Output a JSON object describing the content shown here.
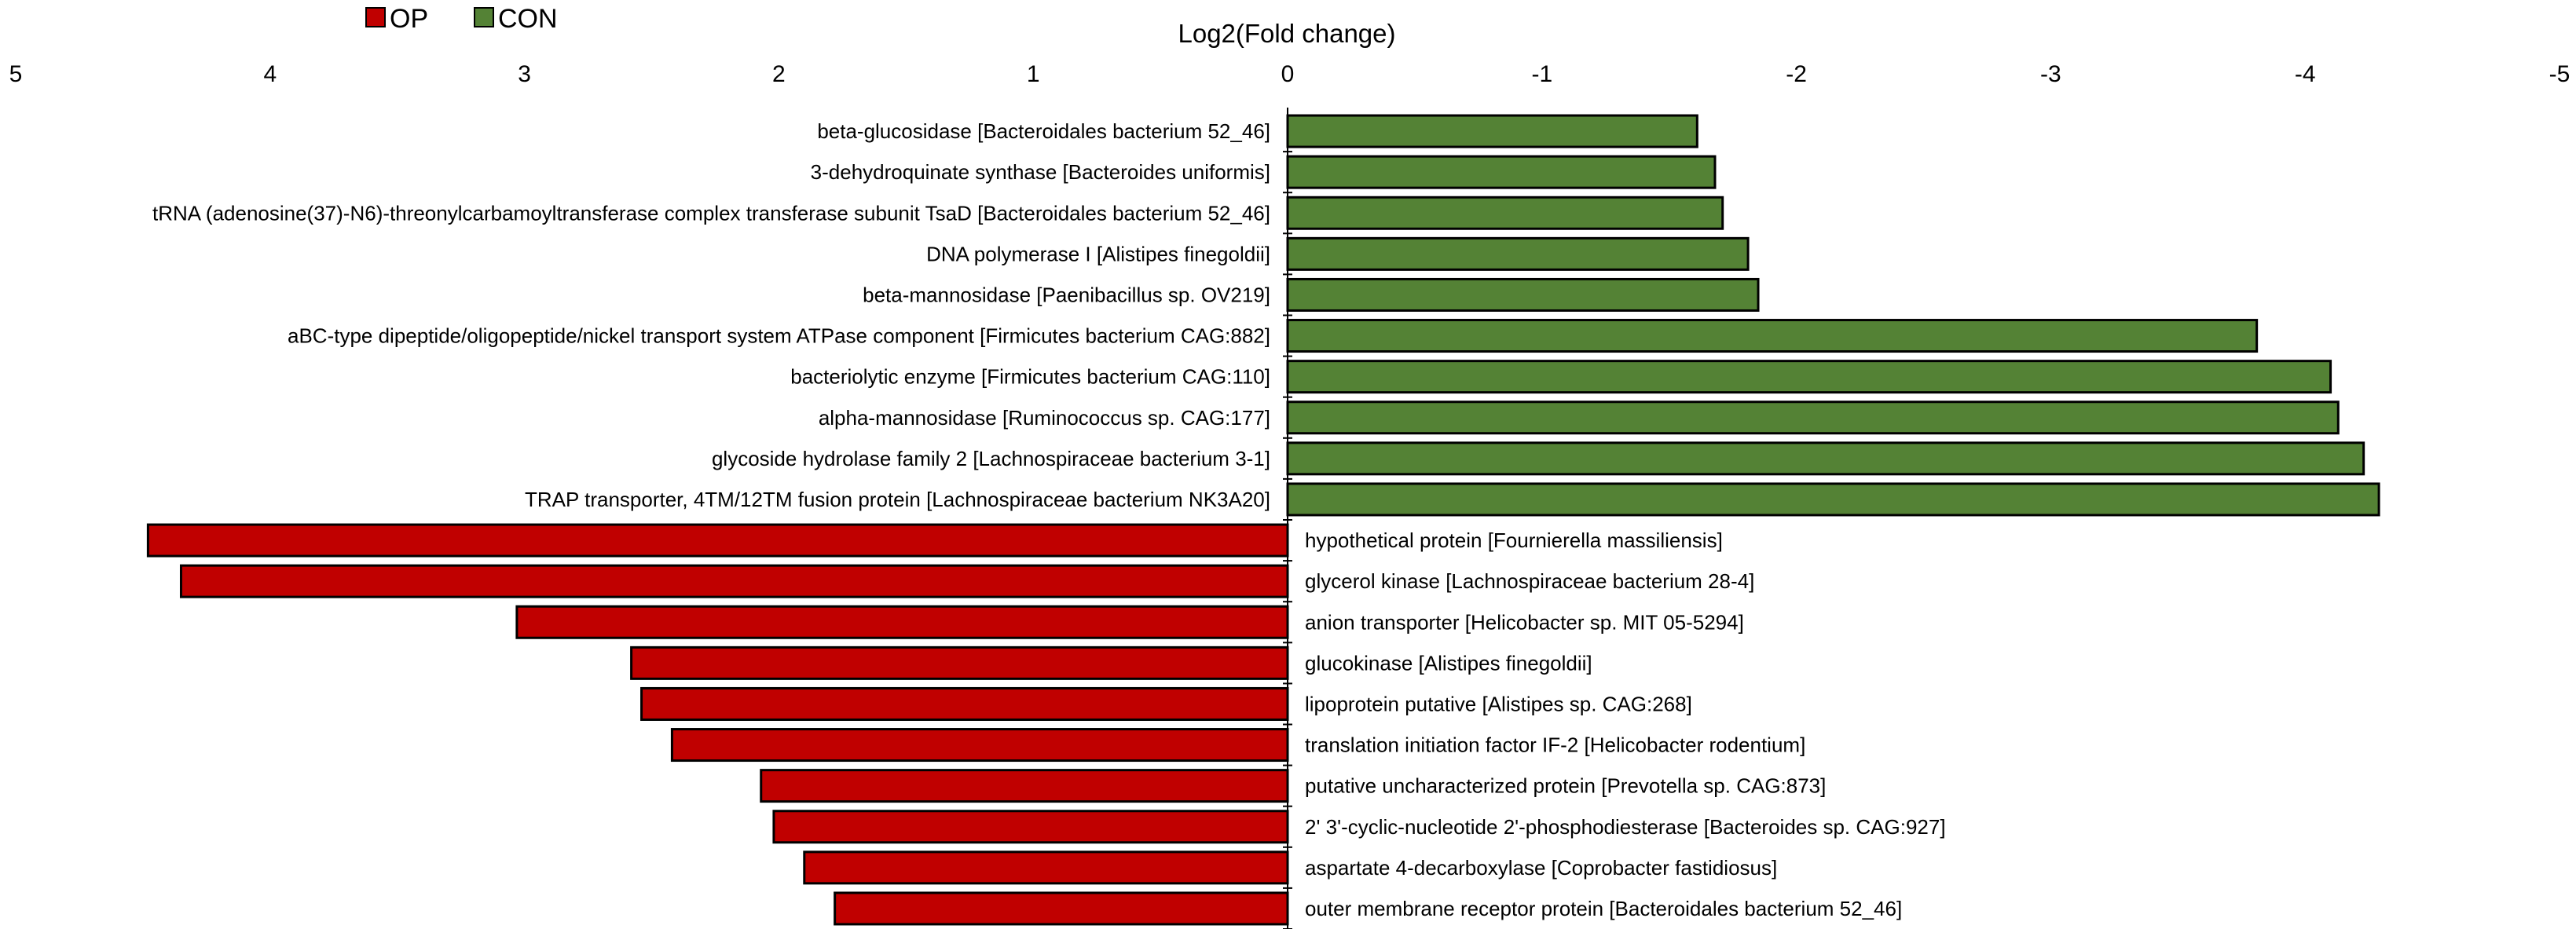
{
  "chart_data": {
    "type": "bar",
    "orientation": "horizontal",
    "xlabel": "Log2(Fold change)",
    "x_axis_reversed": true,
    "xlim": [
      5,
      -5
    ],
    "xticks": [
      "5",
      "4",
      "3",
      "2",
      "1",
      "0",
      "-1",
      "-2",
      "-3",
      "-4",
      "-5"
    ],
    "legend": {
      "placement": "top-left",
      "entries": [
        {
          "name": "OP",
          "color": "#c00000"
        },
        {
          "name": "CON",
          "color": "#548235"
        }
      ]
    },
    "bar_edge_color": "#000000",
    "categories": [
      "beta-glucosidase [Bacteroidales bacterium 52_46]",
      "3-dehydroquinate synthase [Bacteroides uniformis]",
      "tRNA (adenosine(37)-N6)-threonylcarbamoyltransferase complex transferase subunit TsaD [Bacteroidales bacterium 52_46]",
      "DNA polymerase I [Alistipes finegoldii]",
      "beta-mannosidase [Paenibacillus sp. OV219]",
      "aBC-type dipeptide/oligopeptide/nickel transport system ATPase component [Firmicutes bacterium CAG:882]",
      "bacteriolytic enzyme [Firmicutes bacterium CAG:110]",
      "alpha-mannosidase [Ruminococcus sp. CAG:177]",
      "glycoside hydrolase family 2 [Lachnospiraceae bacterium 3-1]",
      "TRAP transporter, 4TM/12TM fusion protein [Lachnospiraceae bacterium NK3A20]",
      "hypothetical protein [Fournierella massiliensis]",
      "glycerol kinase [Lachnospiraceae bacterium 28-4]",
      "anion transporter [Helicobacter sp. MIT 05-5294]",
      "glucokinase [Alistipes finegoldii]",
      "lipoprotein putative [Alistipes sp. CAG:268]",
      "translation initiation factor IF-2 [Helicobacter rodentium]",
      "putative uncharacterized protein [Prevotella sp. CAG:873]",
      "2' 3'-cyclic-nucleotide 2'-phosphodiesterase [Bacteroides sp. CAG:927]",
      "aspartate 4-decarboxylase [Coprobacter fastidiosus]",
      "outer membrane receptor protein [Bacteroidales bacterium 52_46]"
    ],
    "values": [
      -1.61,
      -1.68,
      -1.71,
      -1.81,
      -1.85,
      -3.81,
      -4.1,
      -4.13,
      -4.23,
      -4.29,
      4.48,
      4.35,
      3.03,
      2.58,
      2.54,
      2.42,
      2.07,
      2.02,
      1.9,
      1.78
    ],
    "groups": [
      "CON",
      "CON",
      "CON",
      "CON",
      "CON",
      "CON",
      "CON",
      "CON",
      "CON",
      "CON",
      "OP",
      "OP",
      "OP",
      "OP",
      "OP",
      "OP",
      "OP",
      "OP",
      "OP",
      "OP"
    ]
  }
}
